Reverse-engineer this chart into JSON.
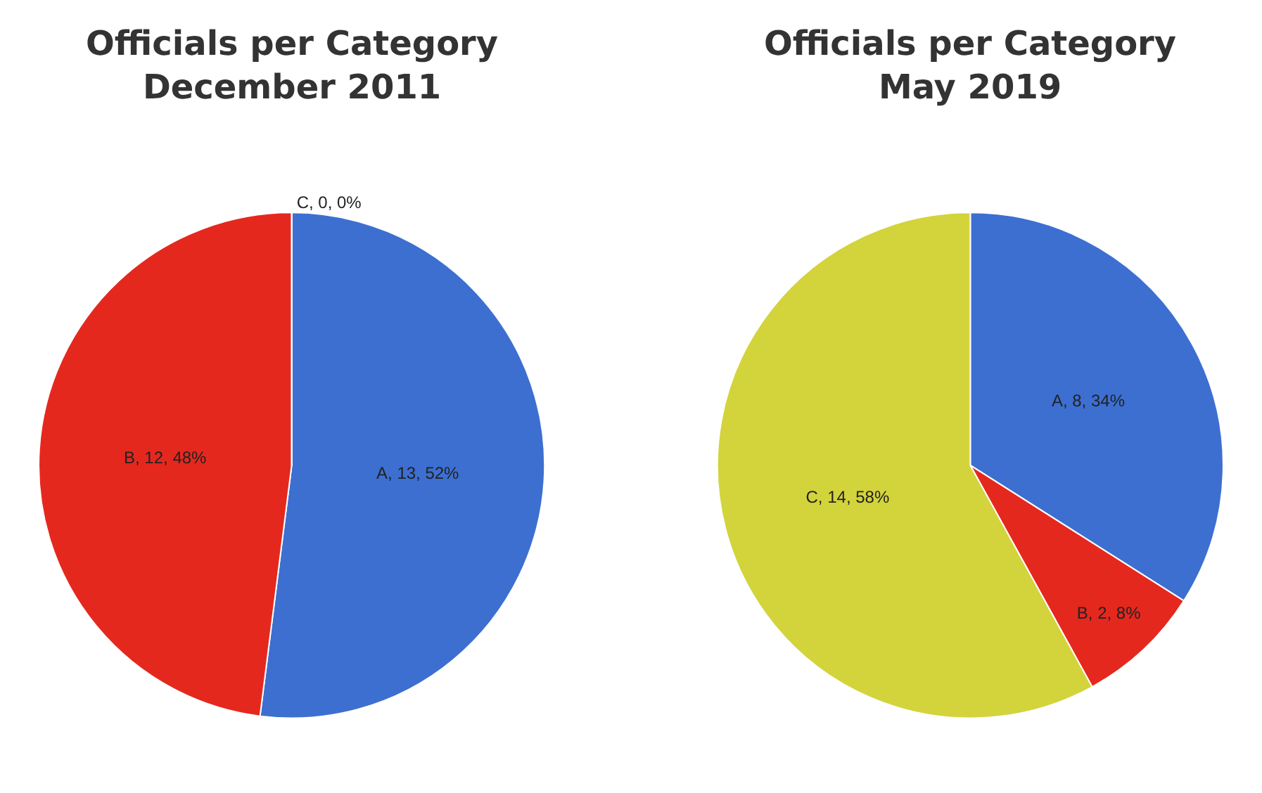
{
  "chart_data": [
    {
      "type": "pie",
      "title": "Officials per Category\nDecember 2011",
      "categories": [
        "A, 13, 52%",
        "B, 12, 48%",
        "C, 0, 0%"
      ],
      "values": [
        52,
        48,
        0
      ],
      "colors": [
        "#3d6fd1",
        "#e5281e",
        "#d3d33c"
      ]
    },
    {
      "type": "pie",
      "title": "Officials per Category\nMay 2019",
      "categories": [
        "A, 8, 34%",
        "B, 2, 8%",
        "C, 14, 58%"
      ],
      "values": [
        34,
        8,
        58
      ],
      "colors": [
        "#3d6fd1",
        "#e5281e",
        "#d3d33c"
      ]
    }
  ]
}
